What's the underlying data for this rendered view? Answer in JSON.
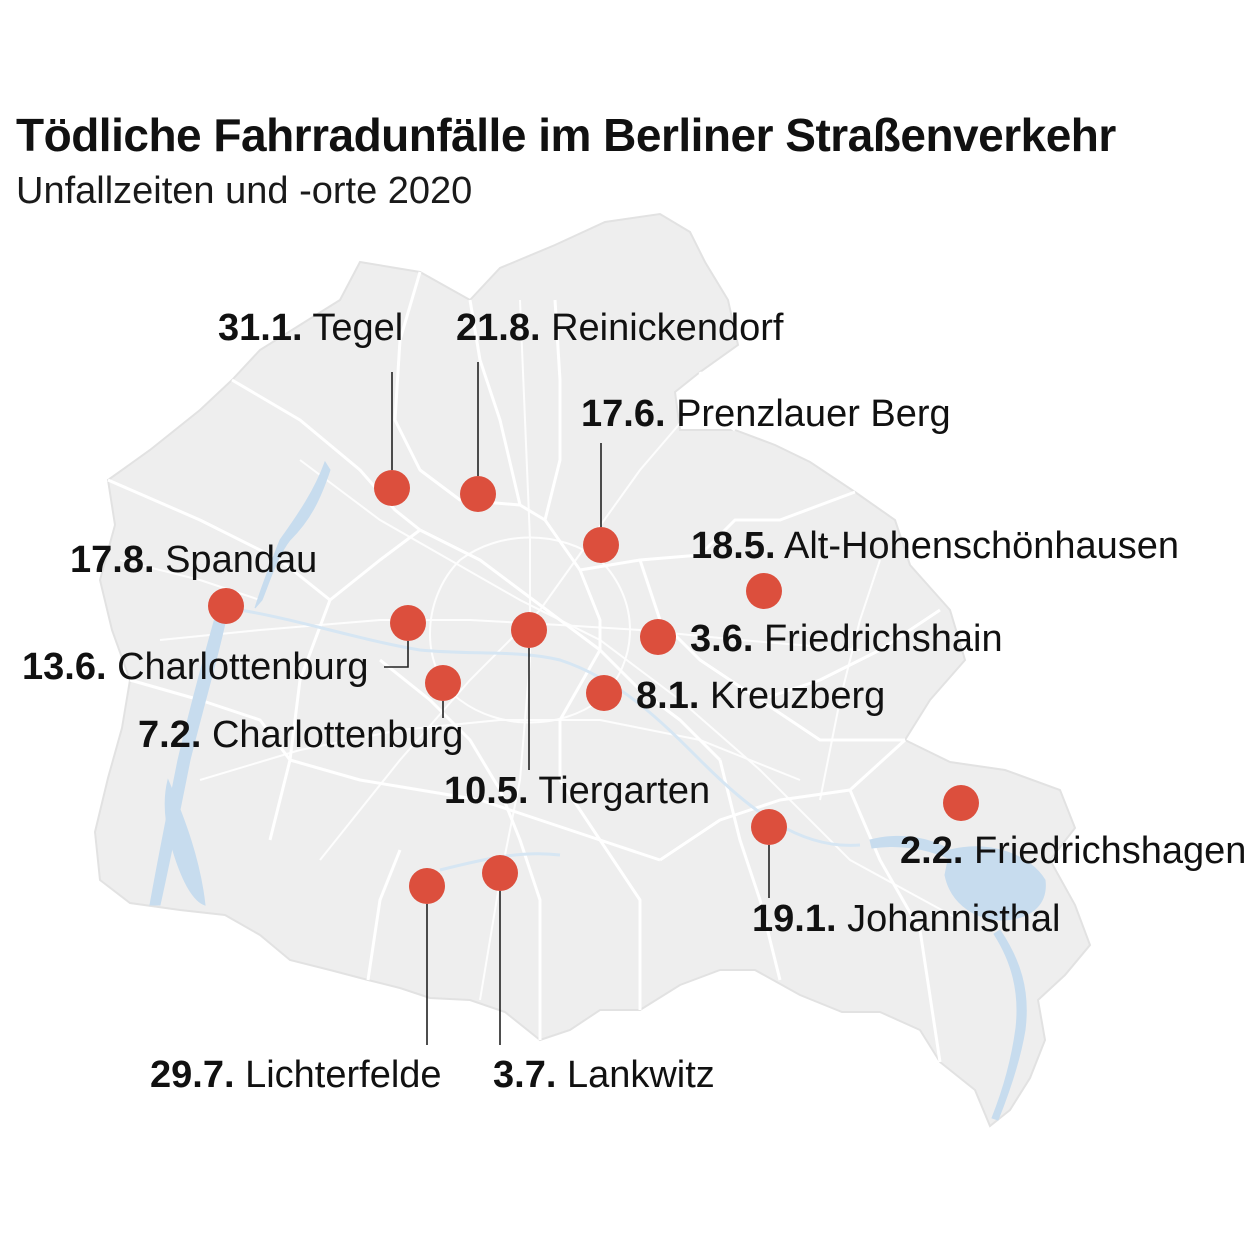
{
  "title": "Tödliche Fahrradunfälle im Berliner Straßenverkehr",
  "subtitle": "Unfallzeiten und -orte 2020",
  "colors": {
    "marker": "#dc4f3d",
    "land": "#eeeeee",
    "border": "#ffffff",
    "water": "#c7dcee",
    "leader": "#222222",
    "text": "#111111"
  },
  "accidents": [
    {
      "date": "31.1.",
      "place": "Tegel"
    },
    {
      "date": "21.8.",
      "place": "Reinickendorf"
    },
    {
      "date": "17.6.",
      "place": "Prenzlauer Berg"
    },
    {
      "date": "17.8.",
      "place": "Spandau"
    },
    {
      "date": "18.5.",
      "place": "Alt-Hohenschönhausen"
    },
    {
      "date": "3.6.",
      "place": "Friedrichshain"
    },
    {
      "date": "13.6.",
      "place": "Charlottenburg"
    },
    {
      "date": "8.1.",
      "place": "Kreuzberg"
    },
    {
      "date": "7.2.",
      "place": "Charlottenburg"
    },
    {
      "date": "10.5.",
      "place": "Tiergarten"
    },
    {
      "date": "2.2.",
      "place": "Friedrichshagen"
    },
    {
      "date": "19.1.",
      "place": "Johannisthal"
    },
    {
      "date": "29.7.",
      "place": "Lichterfelde"
    },
    {
      "date": "3.7.",
      "place": "Lankwitz"
    }
  ]
}
